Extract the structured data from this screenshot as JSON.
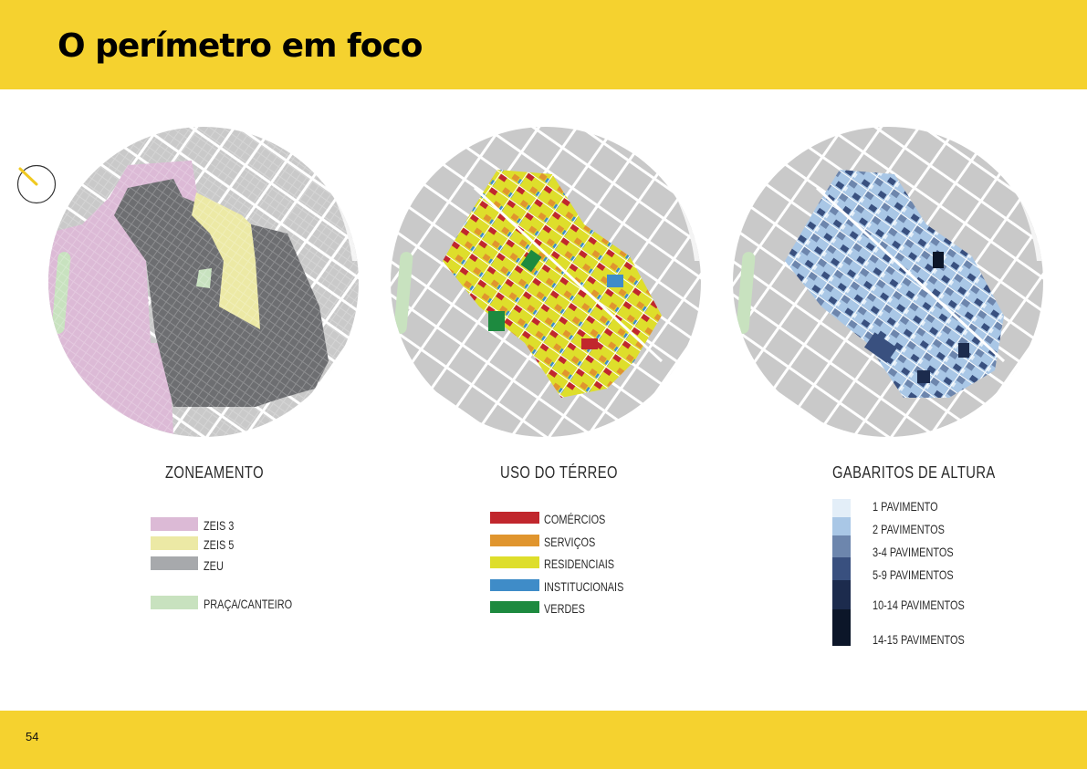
{
  "header": {
    "title": "O perímetro em foco",
    "band_color": "#f5d22f"
  },
  "footer": {
    "page_number": "54"
  },
  "icons": {
    "north_arrow": "north-arrow-icon"
  },
  "panels": {
    "zoneamento": {
      "title": "ZONEAMENTO",
      "legend": [
        {
          "label": "ZEIS 3",
          "color": "#dcbad6"
        },
        {
          "label": "ZEIS 5",
          "color": "#ece9a5"
        },
        {
          "label": "ZEU",
          "color": "#a7a9ac"
        },
        {
          "label": "PRAÇA/CANTEIRO",
          "color": "#c8e2bf"
        }
      ]
    },
    "uso": {
      "title": "USO DO TÉRREO",
      "legend": [
        {
          "label": "COMÉRCIOS",
          "color": "#c1272d"
        },
        {
          "label": "SERVIÇOS",
          "color": "#e0952e"
        },
        {
          "label": "RESIDENCIAIS",
          "color": "#dede2b"
        },
        {
          "label": "INSTITUCIONAIS",
          "color": "#3f8cc8"
        },
        {
          "label": "VERDES",
          "color": "#1d8a3f"
        }
      ]
    },
    "gabaritos": {
      "title": "GABARITOS DE ALTURA",
      "legend": [
        {
          "label": "1 PAVIMENTO",
          "color": "#e3eef8"
        },
        {
          "label": "2 PAVIMENTOS",
          "color": "#a9c7e6"
        },
        {
          "label": "3-4 PAVIMENTOS",
          "color": "#6d86ad"
        },
        {
          "label": "5-9  PAVIMENTOS",
          "color": "#39507f"
        },
        {
          "label": "10-14 PAVIMENTOS",
          "color": "#1c2b4d"
        },
        {
          "label": "14-15 PAVIMENTOS",
          "color": "#0c1629"
        }
      ]
    }
  }
}
